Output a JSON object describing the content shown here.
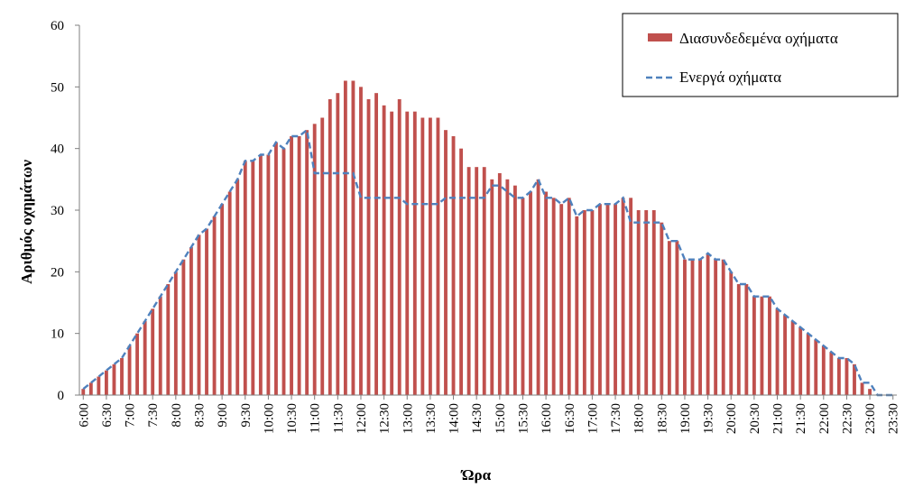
{
  "chart_data": {
    "type": "bar",
    "xlabel": "Ώρα",
    "ylabel": "Αριθμός οχημάτων",
    "ylim": [
      0,
      60
    ],
    "yticks": [
      0,
      10,
      20,
      30,
      40,
      50,
      60
    ],
    "grid": false,
    "legend_position": "top-right",
    "x_tick_labels": [
      "6:00",
      "6:30",
      "7:00",
      "7:30",
      "8:00",
      "8:30",
      "9:00",
      "9:30",
      "10:00",
      "10:30",
      "11:00",
      "11:30",
      "12:00",
      "12:30",
      "13:00",
      "13:30",
      "14:00",
      "14:30",
      "15:00",
      "15:30",
      "16:00",
      "16:30",
      "17:00",
      "17:30",
      "18:00",
      "18:30",
      "19:00",
      "19:30",
      "20:00",
      "20:30",
      "21:00",
      "21:30",
      "22:00",
      "22:30",
      "23:00",
      "23:30"
    ],
    "interval_minutes": 10,
    "series": [
      {
        "name": "Διασυνδεδεμένα οχήματα",
        "type": "bar",
        "color": "#C0504D",
        "values": [
          1,
          2,
          3,
          4,
          5,
          6,
          8,
          10,
          12,
          14,
          16,
          18,
          20,
          22,
          24,
          26,
          27,
          29,
          31,
          33,
          35,
          38,
          38,
          39,
          39,
          41,
          40,
          42,
          42,
          43,
          44,
          45,
          48,
          49,
          51,
          51,
          50,
          48,
          49,
          47,
          46,
          48,
          46,
          46,
          45,
          45,
          45,
          43,
          42,
          40,
          37,
          37,
          37,
          35,
          36,
          35,
          34,
          32,
          33,
          35,
          33,
          32,
          31,
          32,
          29,
          30,
          30,
          31,
          31,
          31,
          32,
          32,
          30,
          30,
          30,
          28,
          25,
          25,
          22,
          22,
          22,
          23,
          22,
          22,
          20,
          18,
          18,
          16,
          16,
          16,
          14,
          13,
          12,
          11,
          10,
          9,
          8,
          7,
          6,
          6,
          5,
          2,
          1,
          0,
          0,
          0
        ]
      },
      {
        "name": "Ενεργά οχήματα",
        "type": "line",
        "color": "#4F81BD",
        "values": [
          1,
          2,
          3,
          4,
          5,
          6,
          8,
          10,
          12,
          14,
          16,
          18,
          20,
          22,
          24,
          26,
          27,
          29,
          31,
          33,
          35,
          38,
          38,
          39,
          39,
          41,
          40,
          42,
          42,
          43,
          36,
          36,
          36,
          36,
          36,
          36,
          32,
          32,
          32,
          32,
          32,
          32,
          31,
          31,
          31,
          31,
          31,
          32,
          32,
          32,
          32,
          32,
          32,
          34,
          34,
          33,
          32,
          32,
          33,
          35,
          32,
          32,
          31,
          32,
          29,
          30,
          30,
          31,
          31,
          31,
          32,
          28,
          28,
          28,
          28,
          28,
          25,
          25,
          22,
          22,
          22,
          23,
          22,
          22,
          20,
          18,
          18,
          16,
          16,
          16,
          14,
          13,
          12,
          11,
          10,
          9,
          8,
          7,
          6,
          6,
          5,
          2,
          2,
          0,
          0,
          0
        ]
      }
    ]
  }
}
